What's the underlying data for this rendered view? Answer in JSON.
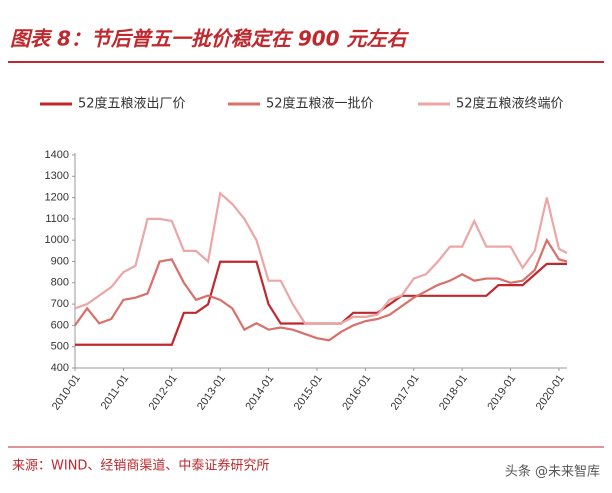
{
  "chart_data": {
    "type": "line",
    "title": "图表 8：节后普五一批价稳定在 900 元左右",
    "source": "来源：WIND、经销商渠道、中泰证券研究所",
    "watermark": "头条 @未来智库",
    "x": [
      "2010-01",
      "2010-04",
      "2010-07",
      "2010-10",
      "2011-01",
      "2011-04",
      "2011-07",
      "2011-10",
      "2012-01",
      "2012-04",
      "2012-07",
      "2012-10",
      "2013-01",
      "2013-04",
      "2013-07",
      "2013-10",
      "2014-01",
      "2014-04",
      "2014-07",
      "2014-10",
      "2015-01",
      "2015-04",
      "2015-07",
      "2015-10",
      "2016-01",
      "2016-04",
      "2016-07",
      "2016-10",
      "2017-01",
      "2017-04",
      "2017-07",
      "2017-10",
      "2018-01",
      "2018-04",
      "2018-07",
      "2018-10",
      "2019-01",
      "2019-04",
      "2019-07",
      "2019-10",
      "2020-01",
      "2020-03"
    ],
    "series": [
      {
        "name": "52度五粮液出厂价",
        "color": "#c0282d",
        "values": [
          509,
          509,
          509,
          509,
          509,
          509,
          509,
          509,
          509,
          659,
          659,
          699,
          899,
          899,
          899,
          899,
          699,
          609,
          609,
          609,
          609,
          609,
          609,
          659,
          659,
          659,
          699,
          739,
          739,
          739,
          739,
          739,
          739,
          739,
          739,
          789,
          789,
          789,
          839,
          889,
          889,
          889
        ]
      },
      {
        "name": "52度五粮液一批价",
        "color": "#d9706a",
        "values": [
          600,
          680,
          610,
          630,
          720,
          730,
          750,
          900,
          910,
          800,
          720,
          740,
          720,
          680,
          580,
          610,
          580,
          590,
          580,
          560,
          540,
          530,
          570,
          600,
          620,
          630,
          650,
          690,
          730,
          760,
          790,
          810,
          840,
          810,
          820,
          820,
          800,
          810,
          860,
          1000,
          910,
          900
        ]
      },
      {
        "name": "52度五粮液终端价",
        "color": "#eca6a6",
        "values": [
          680,
          700,
          740,
          780,
          850,
          880,
          1100,
          1100,
          1090,
          950,
          950,
          900,
          1220,
          1170,
          1100,
          1000,
          810,
          810,
          700,
          610,
          610,
          610,
          610,
          640,
          640,
          650,
          720,
          740,
          820,
          840,
          900,
          970,
          970,
          1090,
          970,
          970,
          970,
          870,
          950,
          1200,
          960,
          940
        ]
      }
    ],
    "xlim": [
      "2010-01",
      "2020-03"
    ],
    "xticks": [
      "2010-01",
      "2011-01",
      "2012-01",
      "2013-01",
      "2014-01",
      "2015-01",
      "2016-01",
      "2017-01",
      "2018-01",
      "2019-01",
      "2020-01"
    ],
    "ylim": [
      400,
      1400
    ],
    "yticks": [
      400,
      500,
      600,
      700,
      800,
      900,
      1000,
      1100,
      1200,
      1300,
      1400
    ],
    "grid": false
  }
}
